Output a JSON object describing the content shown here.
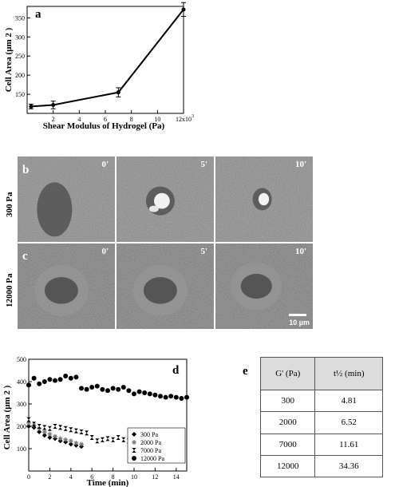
{
  "panels": {
    "a": "a",
    "b": "b",
    "c": "c",
    "d": "d",
    "e": "e"
  },
  "chart_data": [
    {
      "type": "line",
      "panel": "a",
      "ylabel": "Cell Area (μm 2 )",
      "xlabel": "Shear Modulus of Hydrogel (Pa)",
      "x": [
        300,
        2000,
        7000,
        12000
      ],
      "y": [
        118,
        122,
        155,
        372
      ],
      "error": [
        6,
        10,
        12,
        18
      ],
      "xlim": [
        0,
        12000
      ],
      "ylim": [
        100,
        380
      ],
      "xticks": [
        {
          "value": 2000,
          "label": "2"
        },
        {
          "value": 4000,
          "label": "4"
        },
        {
          "value": 6000,
          "label": "6"
        },
        {
          "value": 8000,
          "label": "8"
        },
        {
          "value": 10000,
          "label": "10"
        },
        {
          "value": 12000,
          "label": "12x10"
        }
      ],
      "xtick_exponent": "3",
      "yticks": [
        150,
        200,
        250,
        300,
        350
      ],
      "grid": false
    },
    {
      "type": "scatter",
      "panel": "d",
      "ylabel": "Cell Area (μm 2 )",
      "xlabel": "Time (min)",
      "xlim": [
        0,
        15
      ],
      "ylim": [
        0,
        500
      ],
      "xticks": [
        0,
        2,
        4,
        6,
        8,
        10,
        12,
        14
      ],
      "yticks": [
        100,
        200,
        300,
        400,
        500
      ],
      "legend_position": "bottom-right",
      "series": [
        {
          "name": "300 Pa",
          "marker": "diamond",
          "x": [
            0,
            0.5,
            1,
            1.5,
            2,
            2.5,
            3,
            3.5,
            4,
            4.5,
            5
          ],
          "y": [
            200,
            195,
            175,
            160,
            150,
            145,
            135,
            130,
            120,
            115,
            110
          ]
        },
        {
          "name": "2000 Pa",
          "marker": "asterisk",
          "x": [
            0,
            0.5,
            1,
            1.5,
            2,
            2.5,
            3,
            3.5,
            4,
            4.5,
            5
          ],
          "y": [
            215,
            205,
            190,
            175,
            165,
            155,
            145,
            140,
            135,
            125,
            120
          ]
        },
        {
          "name": "7000 Pa",
          "marker": "bowtie",
          "x": [
            0,
            0.5,
            1,
            1.5,
            2,
            2.5,
            3,
            3.5,
            4,
            4.5,
            5,
            5.5,
            6,
            6.5,
            7,
            7.5,
            8,
            8.5,
            9,
            9.5
          ],
          "y": [
            230,
            210,
            200,
            195,
            190,
            200,
            195,
            190,
            185,
            180,
            175,
            170,
            150,
            135,
            140,
            145,
            140,
            150,
            140,
            135
          ]
        },
        {
          "name": "12000 Pa",
          "marker": "circle",
          "x": [
            0,
            0.5,
            1,
            1.5,
            2,
            2.5,
            3,
            3.5,
            4,
            4.5,
            5,
            5.5,
            6,
            6.5,
            7,
            7.5,
            8,
            8.5,
            9,
            9.5,
            10,
            10.5,
            11,
            11.5,
            12,
            12.5,
            13,
            13.5,
            14,
            14.5,
            15
          ],
          "y": [
            385,
            415,
            390,
            400,
            410,
            405,
            410,
            425,
            415,
            420,
            370,
            365,
            375,
            380,
            365,
            360,
            370,
            365,
            375,
            360,
            345,
            355,
            350,
            345,
            340,
            335,
            330,
            335,
            330,
            325,
            330
          ]
        }
      ]
    },
    {
      "type": "table",
      "panel": "e",
      "columns": [
        "G' (Pa)",
        "t½ (min)"
      ],
      "rows": [
        [
          "300",
          "4.81"
        ],
        [
          "2000",
          "6.52"
        ],
        [
          "7000",
          "11.61"
        ],
        [
          "12000",
          "34.36"
        ]
      ]
    }
  ],
  "micrographs": {
    "rows": [
      {
        "label": "300 Pa",
        "panel": "b",
        "frames": [
          {
            "time": "0'"
          },
          {
            "time": "5'"
          },
          {
            "time": "10'"
          }
        ]
      },
      {
        "label": "12000 Pa",
        "panel": "c",
        "frames": [
          {
            "time": "0'"
          },
          {
            "time": "5'"
          },
          {
            "time": "10'"
          }
        ]
      }
    ],
    "scale_bar": "10 µm"
  }
}
